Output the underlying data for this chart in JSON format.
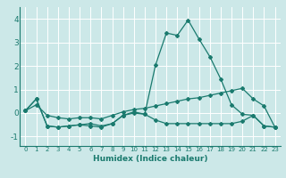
{
  "xlabel": "Humidex (Indice chaleur)",
  "ylabel": "",
  "background_color": "#cce8e8",
  "line_color": "#1a7a6e",
  "xlim": [
    -0.5,
    23.5
  ],
  "ylim": [
    -1.4,
    4.5
  ],
  "yticks": [
    -1,
    0,
    1,
    2,
    3,
    4
  ],
  "xticks": [
    0,
    1,
    2,
    3,
    4,
    5,
    6,
    7,
    8,
    9,
    10,
    11,
    12,
    13,
    14,
    15,
    16,
    17,
    18,
    19,
    20,
    21,
    22,
    23
  ],
  "series": [
    [
      0.1,
      0.6,
      -0.55,
      -0.6,
      -0.55,
      -0.5,
      -0.55,
      -0.6,
      -0.45,
      -0.1,
      0.05,
      -0.05,
      2.05,
      3.4,
      3.3,
      3.95,
      3.15,
      2.4,
      1.45,
      0.35,
      -0.05,
      -0.1,
      -0.55,
      -0.6
    ],
    [
      0.1,
      0.6,
      -0.55,
      -0.6,
      -0.55,
      -0.5,
      -0.45,
      -0.55,
      -0.45,
      -0.1,
      0.0,
      -0.05,
      -0.3,
      -0.45,
      -0.45,
      -0.45,
      -0.45,
      -0.45,
      -0.45,
      -0.45,
      -0.35,
      -0.1,
      -0.55,
      -0.6
    ],
    [
      0.1,
      0.35,
      -0.1,
      -0.2,
      -0.25,
      -0.2,
      -0.2,
      -0.25,
      -0.1,
      0.05,
      0.15,
      0.2,
      0.3,
      0.4,
      0.5,
      0.6,
      0.65,
      0.75,
      0.85,
      0.95,
      1.05,
      0.6,
      0.3,
      -0.6
    ]
  ]
}
